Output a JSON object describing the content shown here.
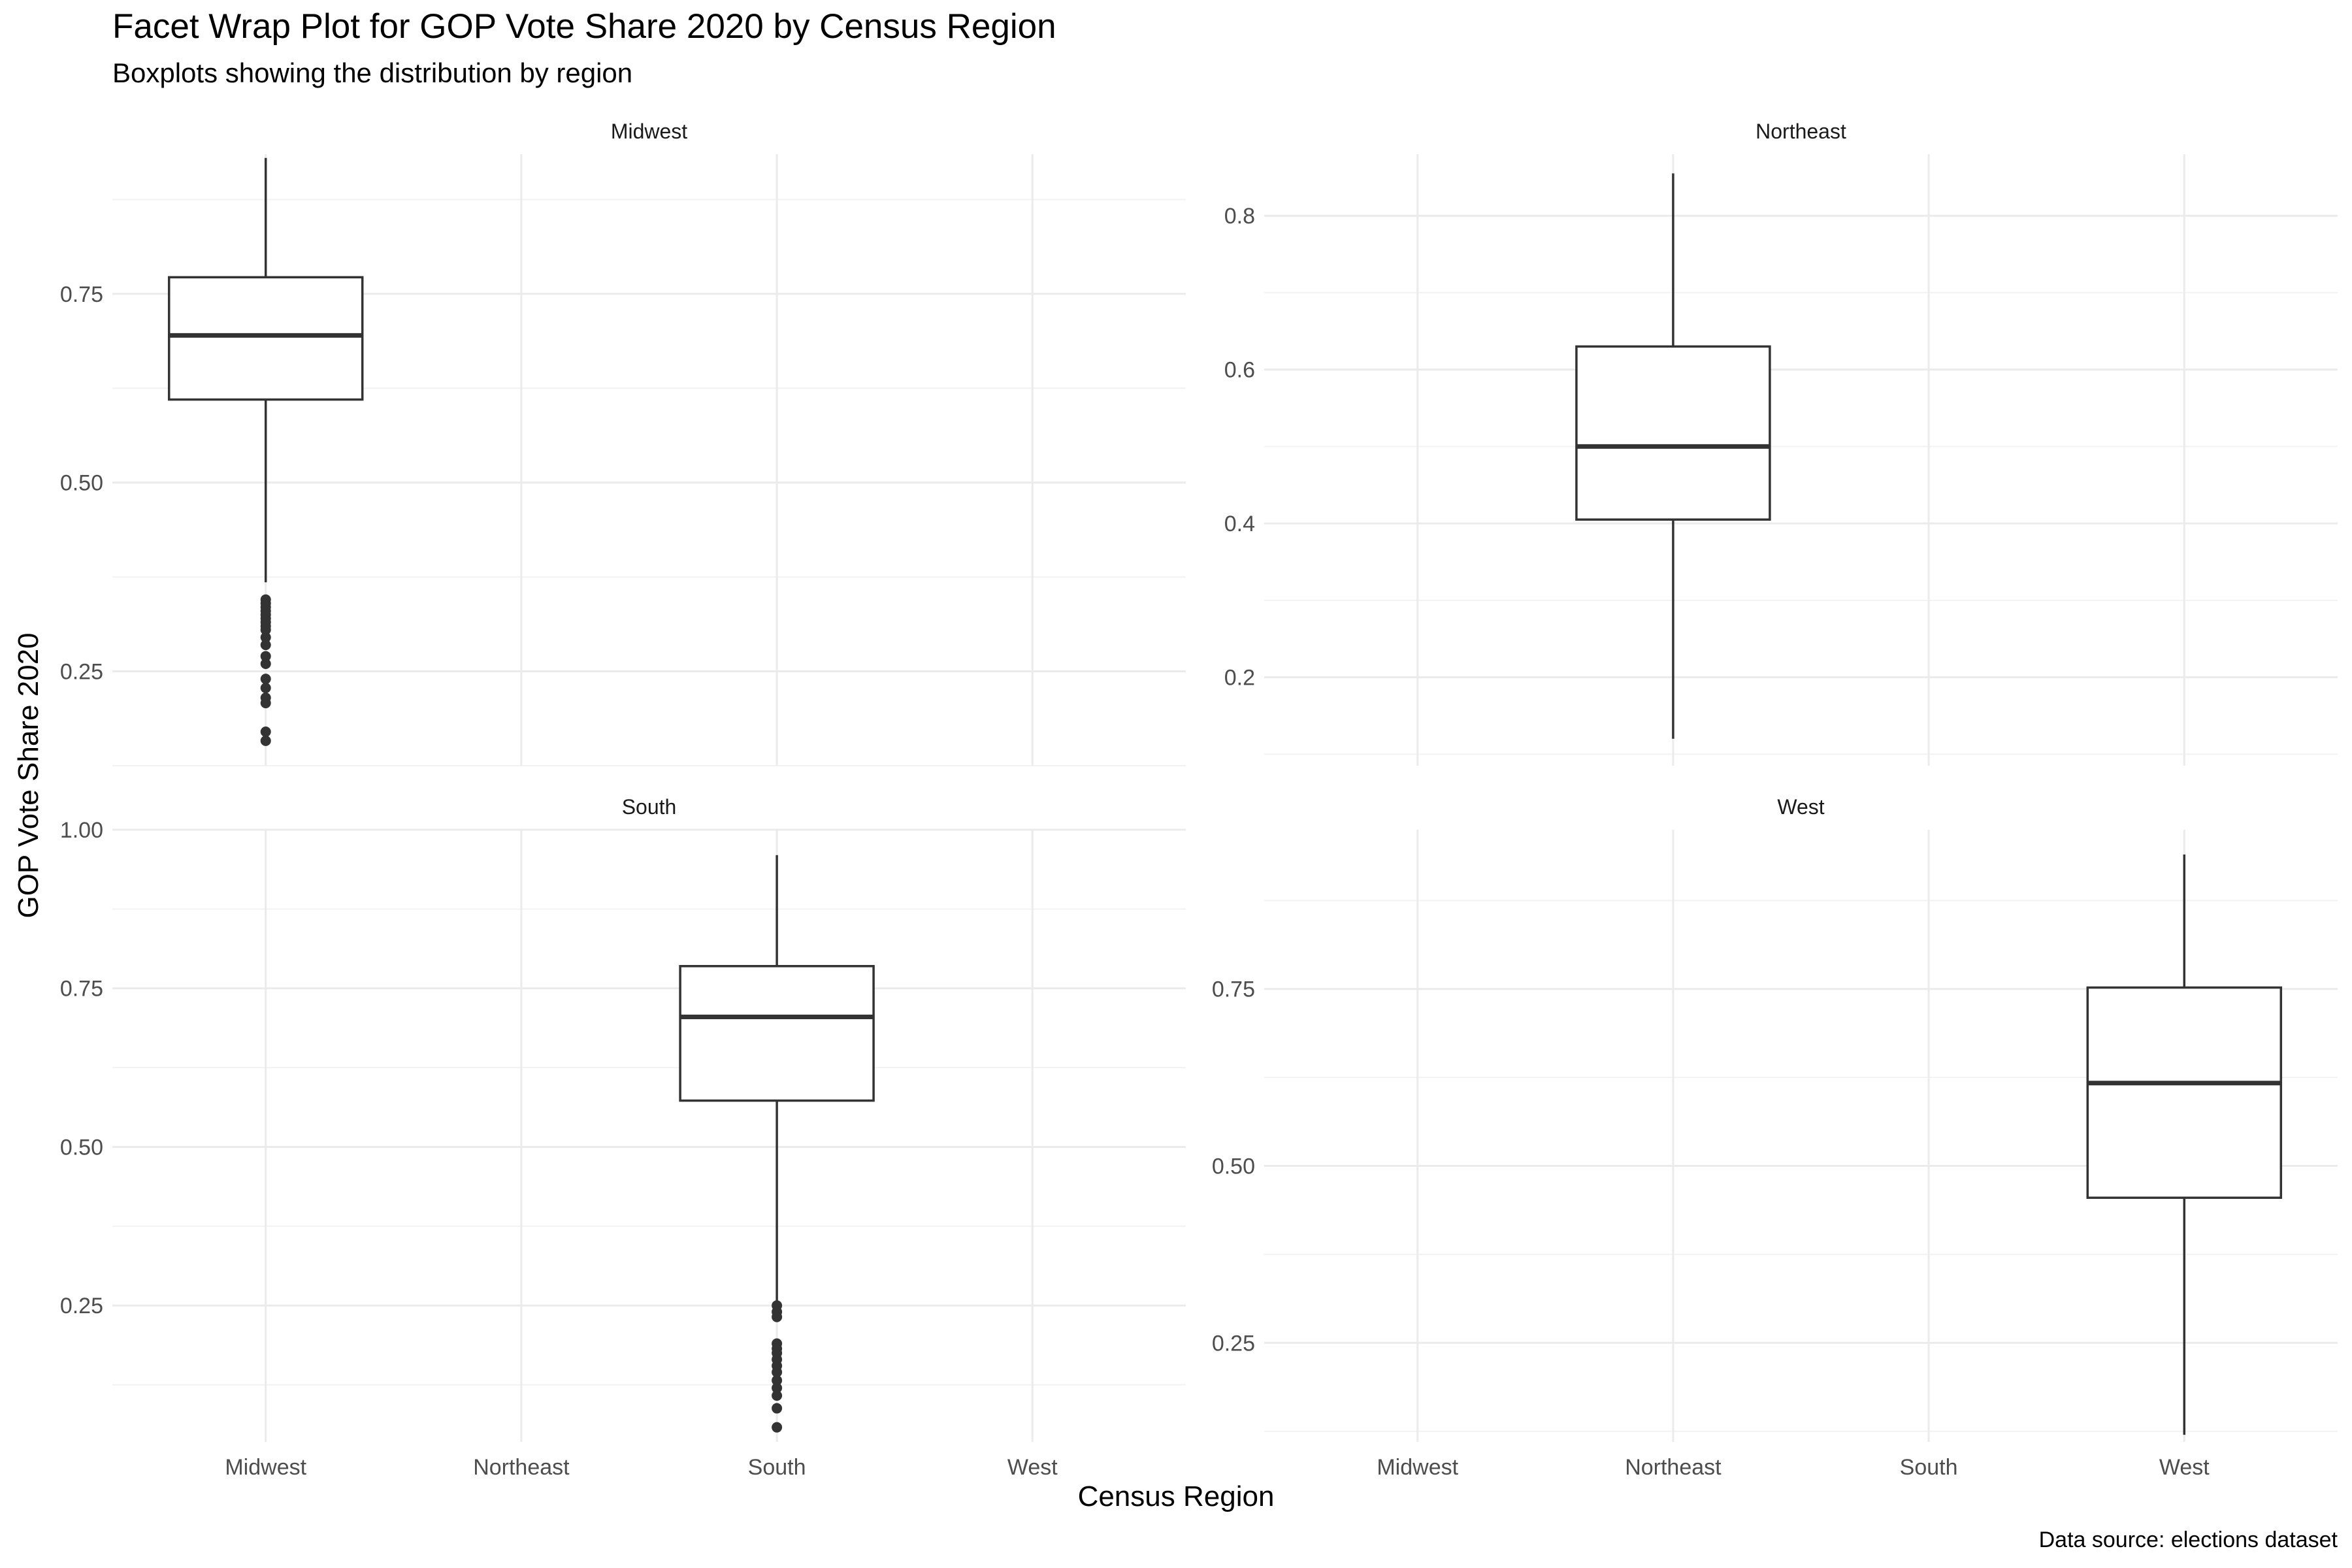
{
  "chart_data": {
    "type": "boxplot",
    "title": "Facet Wrap Plot for GOP Vote Share 2020 by Census Region",
    "subtitle": "Boxplots showing the distribution by region",
    "xlabel": "Census Region",
    "ylabel": "GOP Vote Share 2020",
    "caption": "Data source: elections dataset",
    "categories": [
      "Midwest",
      "Northeast",
      "South",
      "West"
    ],
    "grid": true,
    "facets": [
      {
        "label": "Midwest",
        "region": "Midwest",
        "ylim": [
          0.125,
          0.935
        ],
        "yticks": [
          0.25,
          0.5,
          0.75
        ],
        "ytick_labels": [
          "0.25",
          "0.50",
          "0.75"
        ],
        "x_tick_labels_shown": false,
        "box": {
          "whisker_low": 0.368,
          "q1": 0.61,
          "median": 0.695,
          "q3": 0.772,
          "whisker_high": 0.93
        },
        "outliers": [
          0.345,
          0.34,
          0.335,
          0.33,
          0.325,
          0.32,
          0.315,
          0.31,
          0.305,
          0.295,
          0.285,
          0.27,
          0.26,
          0.24,
          0.228,
          0.215,
          0.208,
          0.17,
          0.158
        ]
      },
      {
        "label": "Northeast",
        "region": "Northeast",
        "ylim": [
          0.085,
          0.88
        ],
        "yticks": [
          0.2,
          0.4,
          0.6,
          0.8
        ],
        "ytick_labels": [
          "0.2",
          "0.4",
          "0.6",
          "0.8"
        ],
        "x_tick_labels_shown": false,
        "box": {
          "whisker_low": 0.12,
          "q1": 0.405,
          "median": 0.5,
          "q3": 0.63,
          "whisker_high": 0.855
        },
        "outliers": []
      },
      {
        "label": "South",
        "region": "South",
        "ylim": [
          0.035,
          1.0
        ],
        "yticks": [
          0.25,
          0.5,
          0.75,
          1.0
        ],
        "ytick_labels": [
          "0.25",
          "0.50",
          "0.75",
          "1.00"
        ],
        "x_tick_labels_shown": true,
        "box": {
          "whisker_low": 0.25,
          "q1": 0.573,
          "median": 0.705,
          "q3": 0.785,
          "whisker_high": 0.96
        },
        "outliers": [
          0.25,
          0.24,
          0.232,
          0.19,
          0.182,
          0.175,
          0.165,
          0.155,
          0.145,
          0.132,
          0.12,
          0.108,
          0.088,
          0.058
        ]
      },
      {
        "label": "West",
        "region": "West",
        "ylim": [
          0.11,
          0.975
        ],
        "yticks": [
          0.25,
          0.5,
          0.75
        ],
        "ytick_labels": [
          "0.25",
          "0.50",
          "0.75"
        ],
        "x_tick_labels_shown": true,
        "box": {
          "whisker_low": 0.12,
          "q1": 0.455,
          "median": 0.617,
          "q3": 0.752,
          "whisker_high": 0.94
        },
        "outliers": []
      }
    ]
  }
}
